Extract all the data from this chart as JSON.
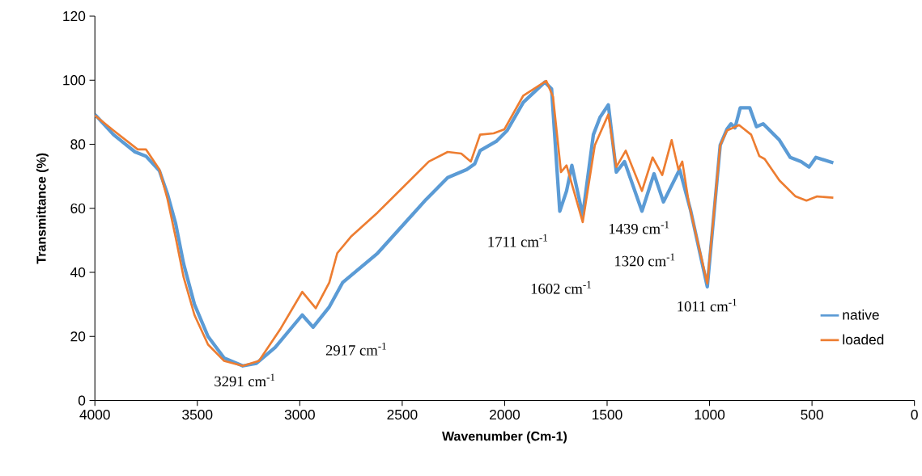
{
  "chart_data": {
    "type": "line",
    "xlabel": "Wavenumber (Cm-1)",
    "ylabel": "Transmittance  (%)",
    "xlim": [
      4000,
      0
    ],
    "ylim": [
      0,
      120
    ],
    "xticks": [
      4000,
      3500,
      3000,
      2500,
      2000,
      1500,
      1000,
      500,
      0
    ],
    "yticks": [
      0,
      20,
      40,
      60,
      80,
      100,
      120
    ],
    "grid": false,
    "legend": "right",
    "marker": "none",
    "line_style": "solid",
    "series": [
      {
        "name": "native",
        "color": "#5b9bd5",
        "x": [
          4000,
          3909,
          3804,
          3751,
          3685,
          3646,
          3606,
          3567,
          3514,
          3448,
          3370,
          3278,
          3212,
          3120,
          2988,
          2935,
          2856,
          2791,
          2620,
          2383,
          2278,
          2185,
          2146,
          2120,
          2041,
          1988,
          1909,
          1804,
          1771,
          1731,
          1698,
          1672,
          1619,
          1567,
          1534,
          1494,
          1455,
          1415,
          1330,
          1271,
          1225,
          1146,
          1093,
          1011,
          948,
          915,
          895,
          876,
          850,
          804,
          771,
          738,
          659,
          606,
          553,
          514,
          481,
          396
        ],
        "values": [
          89.3,
          83,
          77.6,
          76.3,
          71.7,
          64.5,
          55.3,
          42.7,
          30,
          20,
          13.3,
          10.8,
          11.6,
          16.6,
          26.7,
          22.9,
          29.2,
          36.8,
          46,
          62.8,
          69.6,
          72.1,
          73.9,
          78,
          80.9,
          84.3,
          93.1,
          99.4,
          97.3,
          59.1,
          65.4,
          73.4,
          57.8,
          83,
          88.5,
          92.3,
          71.3,
          74.6,
          59.1,
          70.8,
          62,
          72.1,
          59.5,
          35.5,
          79.7,
          84.7,
          86.4,
          85.1,
          91.4,
          91.4,
          85.5,
          86.4,
          81.3,
          75.9,
          74.6,
          72.9,
          75.9,
          74.2
        ]
      },
      {
        "name": "loaded",
        "color": "#ed7d31",
        "x": [
          4000,
          3909,
          3791,
          3751,
          3685,
          3646,
          3606,
          3567,
          3514,
          3448,
          3370,
          3278,
          3199,
          3093,
          2988,
          2922,
          2856,
          2817,
          2751,
          2620,
          2370,
          2278,
          2212,
          2165,
          2120,
          2054,
          2001,
          1909,
          1797,
          1764,
          1725,
          1698,
          1619,
          1560,
          1494,
          1455,
          1409,
          1330,
          1278,
          1231,
          1185,
          1152,
          1133,
          1100,
          1011,
          948,
          915,
          856,
          797,
          757,
          731,
          659,
          580,
          527,
          475,
          396
        ],
        "values": [
          89,
          84.3,
          78.4,
          78.4,
          72.1,
          63,
          51,
          38.5,
          26.7,
          17.5,
          12.4,
          10.8,
          12.4,
          22.5,
          33.9,
          28.8,
          36.8,
          46,
          51.1,
          58.7,
          74.6,
          77.6,
          77.1,
          74.6,
          83,
          83.4,
          84.7,
          95.2,
          99.8,
          94.8,
          71.3,
          73.4,
          55.7,
          79.7,
          89.3,
          72.9,
          78,
          65.4,
          75.9,
          70.4,
          81.3,
          72.1,
          74.6,
          61.2,
          36.5,
          79.7,
          84.3,
          86,
          83,
          76.3,
          75.4,
          68.7,
          63.7,
          62.4,
          63.7,
          63.3
        ]
      }
    ],
    "annotations": [
      "3291 cm$^{-1}$",
      "2917 cm$^{-1}$",
      "1711 cm$^{-1}$",
      "1602 cm$^{-1}$",
      "1439 cm$^{-1}$",
      "1320 cm$^{-1}$",
      "1011 cm$^{-1}$"
    ]
  }
}
